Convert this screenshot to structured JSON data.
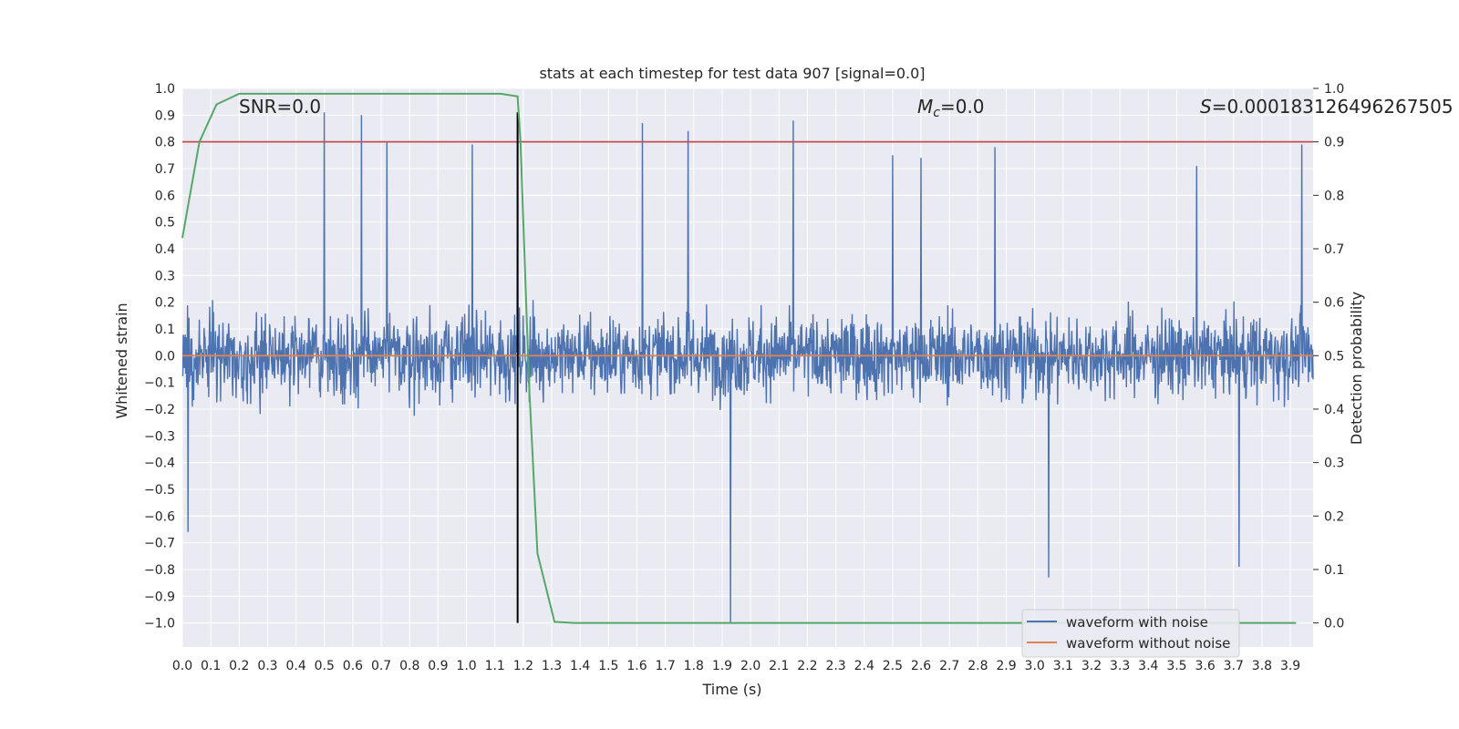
{
  "chart_data": {
    "type": "line",
    "title": "stats at each timestep for test data 907 [signal=0.0]",
    "xlabel": "Time (s)",
    "ylabel": "Whitened strain",
    "y2label": "Detection probability",
    "xlim": [
      0.0,
      3.98
    ],
    "ylim": [
      -1.09,
      1.0
    ],
    "y2lim": [
      -0.045,
      1.0
    ],
    "x_ticks": [
      0.0,
      0.1,
      0.2,
      0.3,
      0.4,
      0.5,
      0.6,
      0.7,
      0.8,
      0.9,
      1.0,
      1.1,
      1.2,
      1.3,
      1.4,
      1.5,
      1.6,
      1.7,
      1.8,
      1.9,
      2.0,
      2.1,
      2.2,
      2.3,
      2.4,
      2.5,
      2.6,
      2.7,
      2.8,
      2.9,
      3.0,
      3.1,
      3.2,
      3.3,
      3.4,
      3.5,
      3.6,
      3.7,
      3.8,
      3.9
    ],
    "x_tick_labels": [
      "0.0",
      "0.1",
      "0.2",
      "0.3",
      "0.4",
      "0.5",
      "0.6",
      "0.7",
      "0.8",
      "0.9",
      "1.0",
      "1.1",
      "1.2",
      "1.3",
      "1.4",
      "1.5",
      "1.6",
      "1.7",
      "1.8",
      "1.9",
      "2.0",
      "2.1",
      "2.2",
      "2.3",
      "2.4",
      "2.5",
      "2.6",
      "2.7",
      "2.8",
      "2.9",
      "3.0",
      "3.1",
      "3.2",
      "3.3",
      "3.4",
      "3.5",
      "3.6",
      "3.7",
      "3.8",
      "3.9"
    ],
    "y_ticks": [
      1.0,
      0.9,
      0.8,
      0.7,
      0.6,
      0.5,
      0.4,
      0.3,
      0.2,
      0.1,
      0.0,
      -0.1,
      -0.2,
      -0.3,
      -0.4,
      -0.5,
      -0.6,
      -0.7,
      -0.8,
      -0.9,
      -1.0
    ],
    "y_tick_labels": [
      "1.0",
      "0.9",
      "0.8",
      "0.7",
      "0.6",
      "0.5",
      "0.4",
      "0.3",
      "0.2",
      "0.1",
      "0.0",
      "−0.1",
      "−0.2",
      "−0.3",
      "−0.4",
      "−0.5",
      "−0.6",
      "−0.7",
      "−0.8",
      "−0.9",
      "−1.0"
    ],
    "y2_ticks": [
      1.0,
      0.9,
      0.8,
      0.7,
      0.6,
      0.5,
      0.4,
      0.3,
      0.2,
      0.1,
      0.0
    ],
    "y2_tick_labels": [
      "1.0",
      "0.9",
      "0.8",
      "0.7",
      "0.6",
      "0.5",
      "0.4",
      "0.3",
      "0.2",
      "0.1",
      "0.0"
    ],
    "annotations": {
      "snr": "SNR=0.0",
      "mc_symbol": "M",
      "mc_sub": "c",
      "mc_value": "=0.0",
      "s_symbol": "S",
      "s_value": "=0.00018312649626750​5"
    },
    "legend": {
      "placement": "lower-right",
      "entries": [
        "waveform with noise",
        "waveform without noise"
      ]
    },
    "series": [
      {
        "name": "waveform with noise",
        "axis": "left",
        "color": "#4c72b0",
        "style": "dense noise, amplitude mostly within ±0.5, occasional spikes",
        "spikes_x": [
          0.02,
          0.5,
          0.63,
          0.72,
          1.02,
          1.18,
          1.62,
          1.78,
          1.93,
          2.15,
          2.5,
          2.6,
          2.86,
          3.05,
          3.57,
          3.72,
          3.94
        ],
        "spikes_y": [
          -0.66,
          0.91,
          0.9,
          0.8,
          0.79,
          0.91,
          0.87,
          0.84,
          -1.0,
          0.88,
          0.75,
          0.74,
          0.78,
          -0.83,
          0.71,
          -0.79,
          0.79
        ]
      },
      {
        "name": "waveform without noise",
        "axis": "left",
        "color": "#dd8452",
        "x": [
          0.0,
          3.98
        ],
        "y": [
          0.0,
          0.0
        ]
      },
      {
        "name": "detection probability",
        "axis": "right",
        "color": "#55a868",
        "x": [
          0.0,
          0.02,
          0.06,
          0.12,
          0.2,
          0.3,
          0.5,
          0.8,
          1.0,
          1.12,
          1.18,
          1.19,
          1.22,
          1.25,
          1.31,
          1.38,
          1.5,
          2.0,
          3.0,
          3.92
        ],
        "y": [
          0.72,
          0.78,
          0.9,
          0.97,
          0.99,
          0.99,
          0.99,
          0.99,
          0.99,
          0.99,
          0.985,
          0.9,
          0.45,
          0.13,
          0.002,
          0.0,
          0.0,
          0.0,
          0.0,
          0.0
        ]
      },
      {
        "name": "threshold",
        "axis": "right",
        "color": "#c44e52",
        "y_value": 0.9
      },
      {
        "name": "peak marker",
        "axis": "left",
        "color": "#000000",
        "x_value": 1.18,
        "y_range": [
          -1.0,
          0.91
        ]
      }
    ]
  }
}
